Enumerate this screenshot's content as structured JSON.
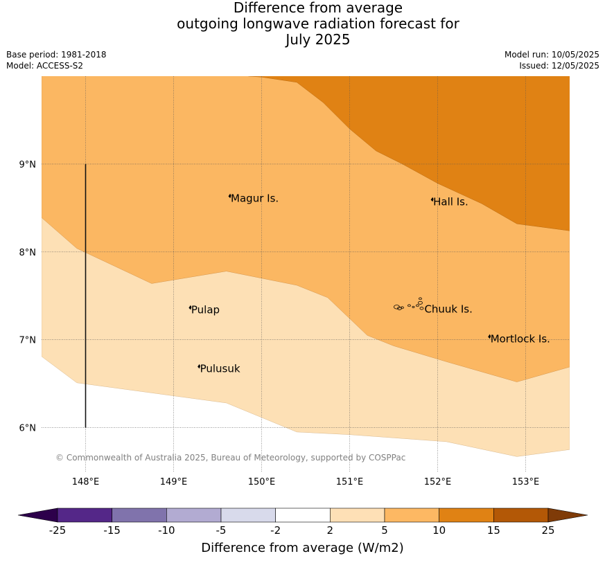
{
  "title": {
    "line1": "Difference from average",
    "line2": "outgoing longwave radiation forecast for",
    "line3": "July 2025"
  },
  "base_period": "Base period: 1981-2018",
  "model": "Model: ACCESS-S2",
  "model_run": "Model run: 10/05/2025",
  "issued": "Issued: 12/05/2025",
  "copyright": "© Commonwealth of Australia 2025, Bureau of Meteorology, supported by COSPPac",
  "map": {
    "lon_range": [
      147.5,
      153.5
    ],
    "lat_range": [
      5.5,
      10.0
    ],
    "lon_ticks": [
      {
        "value": 148,
        "label": "148°E"
      },
      {
        "value": 149,
        "label": "149°E"
      },
      {
        "value": 150,
        "label": "150°E"
      },
      {
        "value": 151,
        "label": "151°E"
      },
      {
        "value": 152,
        "label": "152°E"
      },
      {
        "value": 153,
        "label": "153°E"
      }
    ],
    "lat_ticks": [
      {
        "value": 6,
        "label": "6°N"
      },
      {
        "value": 7,
        "label": "7°N"
      },
      {
        "value": 8,
        "label": "8°N"
      },
      {
        "value": 9,
        "label": "9°N"
      }
    ],
    "grid": true,
    "places": [
      {
        "name": "Magur Is.",
        "lon": 149.65,
        "lat": 8.57
      },
      {
        "name": "Hall Is.",
        "lon": 151.95,
        "lat": 8.53
      },
      {
        "name": "Pulap",
        "lon": 149.2,
        "lat": 7.3
      },
      {
        "name": "Chuuk Is.",
        "lon": 151.85,
        "lat": 7.31
      },
      {
        "name": "Mortlock Is.",
        "lon": 152.6,
        "lat": 6.97
      },
      {
        "name": "Pulusuk",
        "lon": 149.3,
        "lat": 6.63
      }
    ],
    "boundary_line": {
      "lon": 148.0,
      "lat_from": 6.0,
      "lat_to": 9.0
    },
    "contours": {
      "level_2_to_5": {
        "color": "#fde0b5",
        "boundary": [
          [
            147.5,
            6.81
          ],
          [
            147.9,
            6.51
          ],
          [
            149.6,
            6.28
          ],
          [
            150.4,
            5.95
          ],
          [
            151.0,
            5.92
          ],
          [
            152.1,
            5.84
          ],
          [
            152.9,
            5.67
          ],
          [
            153.5,
            5.75
          ]
        ]
      },
      "level_5_to_10": {
        "color": "#fbb762",
        "boundary": [
          [
            147.5,
            8.39
          ],
          [
            147.9,
            8.04
          ],
          [
            148.75,
            7.64
          ],
          [
            149.6,
            7.78
          ],
          [
            150.4,
            7.62
          ],
          [
            150.75,
            7.48
          ],
          [
            151.2,
            7.05
          ],
          [
            151.5,
            6.93
          ],
          [
            152.1,
            6.75
          ],
          [
            152.9,
            6.52
          ],
          [
            153.5,
            6.69
          ]
        ]
      },
      "level_10_to_15": {
        "color": "#e08214",
        "boundary": [
          [
            149.85,
            10.0
          ],
          [
            150.0,
            9.99
          ],
          [
            150.4,
            9.93
          ],
          [
            150.7,
            9.7
          ],
          [
            151.0,
            9.4
          ],
          [
            151.3,
            9.15
          ],
          [
            151.6,
            9.0
          ],
          [
            152.0,
            8.78
          ],
          [
            152.5,
            8.55
          ],
          [
            152.9,
            8.32
          ],
          [
            153.5,
            8.24
          ]
        ]
      }
    }
  },
  "colorbar": {
    "label": "Difference from average (W/m2)",
    "colors": [
      "#2d004b",
      "#542788",
      "#8073ac",
      "#b2abd2",
      "#d8daeb",
      "#ffffff",
      "#fee0b6",
      "#fdb863",
      "#e08214",
      "#b35806",
      "#7f3b08"
    ],
    "ticks": [
      "-25",
      "-15",
      "-10",
      "-5",
      "-2",
      "2",
      "5",
      "10",
      "15",
      "25"
    ]
  }
}
